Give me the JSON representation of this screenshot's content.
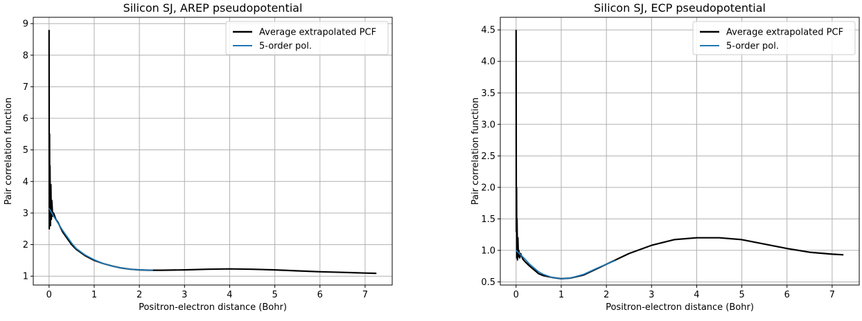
{
  "chart_data": [
    {
      "type": "line",
      "title": "Silicon SJ, AREP pseudopotential",
      "xlabel": "Positron-electron distance (Bohr)",
      "ylabel": "Pair correlation function",
      "xlim": [
        -0.35,
        7.6
      ],
      "ylim": [
        0.72,
        9.2
      ],
      "xticks": [
        0,
        1,
        2,
        3,
        4,
        5,
        6,
        7
      ],
      "yticks": [
        1,
        2,
        3,
        4,
        5,
        6,
        7,
        8,
        9
      ],
      "grid": true,
      "legend_position": "upper right",
      "series": [
        {
          "name": "Average extrapolated PCF",
          "color": "#000000",
          "x": [
            0,
            0.005,
            0.01,
            0.015,
            0.02,
            0.03,
            0.04,
            0.05,
            0.06,
            0.08,
            0.1,
            0.15,
            0.2,
            0.3,
            0.4,
            0.5,
            0.6,
            0.8,
            1.0,
            1.2,
            1.4,
            1.6,
            1.8,
            2.0,
            2.2,
            2.5,
            3.0,
            3.5,
            4.0,
            4.5,
            5.0,
            5.5,
            6.0,
            6.5,
            7.0,
            7.25
          ],
          "y": [
            8.8,
            2.5,
            5.5,
            2.9,
            4.5,
            2.6,
            3.9,
            2.8,
            3.4,
            2.9,
            3.0,
            2.8,
            2.7,
            2.4,
            2.2,
            2.0,
            1.85,
            1.65,
            1.5,
            1.4,
            1.32,
            1.26,
            1.22,
            1.2,
            1.19,
            1.19,
            1.2,
            1.22,
            1.23,
            1.22,
            1.2,
            1.17,
            1.14,
            1.12,
            1.1,
            1.09
          ]
        },
        {
          "name": "5-order pol.",
          "color": "#1f77b4",
          "x": [
            0,
            0.1,
            0.2,
            0.3,
            0.4,
            0.5,
            0.6,
            0.8,
            1.0,
            1.2,
            1.4,
            1.6,
            1.8,
            2.0,
            2.2,
            2.3
          ],
          "y": [
            3.15,
            2.9,
            2.68,
            2.45,
            2.25,
            2.05,
            1.88,
            1.67,
            1.52,
            1.4,
            1.32,
            1.26,
            1.22,
            1.2,
            1.19,
            1.19
          ]
        }
      ]
    },
    {
      "type": "line",
      "title": "Silicon SJ, ECP pseudopotential",
      "xlabel": "Positron-electron distance (Bohr)",
      "ylabel": "Pair correlation function",
      "xlim": [
        -0.35,
        7.6
      ],
      "ylim": [
        0.45,
        4.7
      ],
      "xticks": [
        0,
        1,
        2,
        3,
        4,
        5,
        6,
        7
      ],
      "yticks": [
        0.5,
        1.0,
        1.5,
        2.0,
        2.5,
        3.0,
        3.5,
        4.0,
        4.5
      ],
      "grid": true,
      "legend_position": "upper right",
      "series": [
        {
          "name": "Average extrapolated PCF",
          "color": "#000000",
          "x": [
            0,
            0.005,
            0.01,
            0.015,
            0.02,
            0.03,
            0.04,
            0.05,
            0.06,
            0.08,
            0.1,
            0.15,
            0.2,
            0.3,
            0.4,
            0.5,
            0.6,
            0.8,
            1.0,
            1.2,
            1.5,
            2.0,
            2.5,
            3.0,
            3.5,
            4.0,
            4.5,
            5.0,
            5.5,
            6.0,
            6.5,
            7.0,
            7.25
          ],
          "y": [
            4.5,
            1.3,
            2.0,
            0.88,
            1.5,
            0.85,
            1.2,
            0.9,
            1.0,
            0.88,
            0.95,
            0.86,
            0.82,
            0.75,
            0.69,
            0.63,
            0.6,
            0.57,
            0.55,
            0.56,
            0.61,
            0.78,
            0.95,
            1.08,
            1.17,
            1.2,
            1.2,
            1.17,
            1.1,
            1.03,
            0.97,
            0.94,
            0.93
          ]
        },
        {
          "name": "5-order pol.",
          "color": "#1f77b4",
          "x": [
            0,
            0.1,
            0.2,
            0.3,
            0.4,
            0.5,
            0.6,
            0.8,
            1.0,
            1.2,
            1.5,
            1.8,
            2.0,
            2.2
          ],
          "y": [
            1.0,
            0.93,
            0.86,
            0.78,
            0.72,
            0.66,
            0.62,
            0.57,
            0.55,
            0.56,
            0.62,
            0.72,
            0.78,
            0.84
          ]
        }
      ]
    }
  ]
}
